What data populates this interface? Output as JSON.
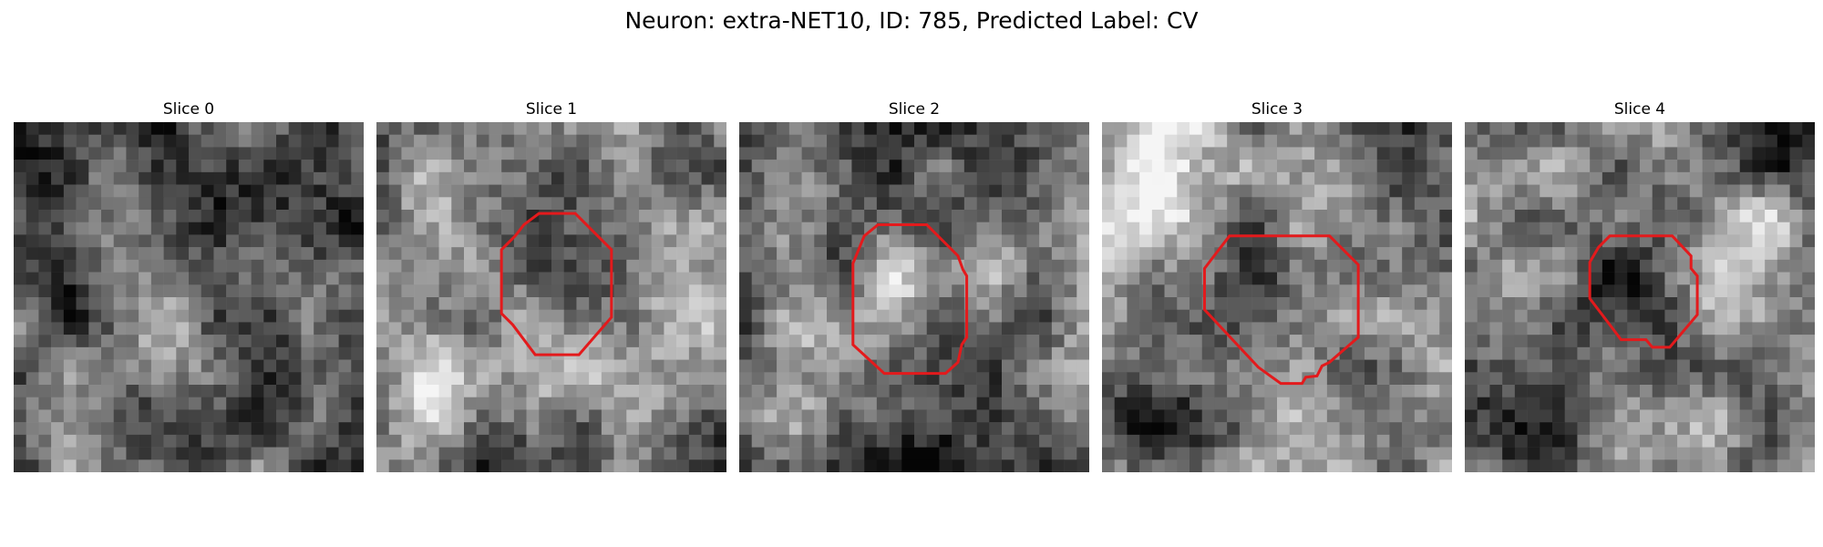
{
  "figure": {
    "title": "Neuron: extra-NET10, ID: 785, Predicted Label: CV"
  },
  "colors": {
    "roi_outline": "#e31a1c",
    "background": "#ffffff"
  },
  "panels": [
    {
      "title": "Slice 0",
      "has_roi": false,
      "seed": 11,
      "brightness": [
        0.35,
        0.62
      ],
      "blobs": [
        [
          0.45,
          0.5,
          0.18,
          0.35
        ],
        [
          0.2,
          0.9,
          0.15,
          0.3
        ],
        [
          0.8,
          0.3,
          0.2,
          -0.25
        ],
        [
          0.4,
          0.8,
          0.15,
          -0.2
        ]
      ]
    },
    {
      "title": "Slice 1",
      "has_roi": true,
      "seed": 23,
      "brightness": [
        0.45,
        0.62
      ],
      "blobs": [
        [
          0.15,
          0.75,
          0.2,
          0.4
        ],
        [
          0.75,
          0.7,
          0.22,
          0.35
        ],
        [
          0.25,
          0.25,
          0.18,
          0.2
        ],
        [
          0.35,
          0.9,
          0.12,
          -0.35
        ]
      ]
    },
    {
      "title": "Slice 2",
      "has_roi": true,
      "seed": 37,
      "brightness": [
        0.4,
        0.62
      ],
      "blobs": [
        [
          0.2,
          0.75,
          0.2,
          0.4
        ],
        [
          0.5,
          0.45,
          0.12,
          0.25
        ],
        [
          0.85,
          0.35,
          0.15,
          0.25
        ],
        [
          0.45,
          0.95,
          0.2,
          -0.4
        ]
      ]
    },
    {
      "title": "Slice 3",
      "has_roi": true,
      "seed": 41,
      "brightness": [
        0.5,
        0.6
      ],
      "blobs": [
        [
          0.15,
          0.15,
          0.2,
          0.3
        ],
        [
          0.5,
          0.55,
          0.22,
          -0.15
        ],
        [
          0.85,
          0.2,
          0.15,
          -0.25
        ],
        [
          0.1,
          0.9,
          0.15,
          -0.3
        ]
      ]
    },
    {
      "title": "Slice 4",
      "has_roi": true,
      "seed": 53,
      "brightness": [
        0.55,
        0.6
      ],
      "blobs": [
        [
          0.43,
          0.45,
          0.12,
          -0.45
        ],
        [
          0.2,
          0.9,
          0.15,
          -0.35
        ],
        [
          0.9,
          0.05,
          0.15,
          -0.3
        ],
        [
          0.85,
          0.3,
          0.15,
          0.2
        ]
      ]
    }
  ]
}
